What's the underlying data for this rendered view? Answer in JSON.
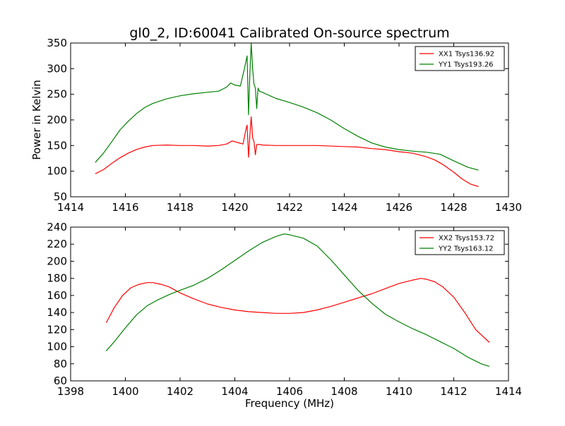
{
  "title": "gl0_2, ID:60041 Calibrated On-source spectrum",
  "colors": {
    "red": "#ff0000",
    "green": "#008000"
  },
  "chart_data": [
    {
      "type": "line",
      "ylabel": "Power in Kelvin",
      "xlabel": "",
      "xlim": [
        1414,
        1430
      ],
      "ylim": [
        50,
        350
      ],
      "xticks": [
        1414,
        1416,
        1418,
        1420,
        1422,
        1424,
        1426,
        1428,
        1430
      ],
      "yticks": [
        50,
        100,
        150,
        200,
        250,
        300,
        350
      ],
      "legend_position": "top-right",
      "series": [
        {
          "name": "XX1 Tsys136.92",
          "color": "#ff0000",
          "x": [
            1414.9,
            1415.2,
            1415.5,
            1415.8,
            1416.1,
            1416.4,
            1416.7,
            1417.0,
            1417.5,
            1418.0,
            1418.5,
            1419.0,
            1419.4,
            1419.7,
            1419.9,
            1420.1,
            1420.3,
            1420.4,
            1420.45,
            1420.5,
            1420.55,
            1420.6,
            1420.65,
            1420.7,
            1420.75,
            1420.8,
            1420.9,
            1421.0,
            1421.5,
            1422.0,
            1423.0,
            1424.0,
            1424.5,
            1425.0,
            1425.5,
            1426.0,
            1426.5,
            1427.0,
            1427.3,
            1427.6,
            1428.0,
            1428.3,
            1428.6,
            1428.9
          ],
          "y": [
            95,
            103,
            115,
            126,
            135,
            142,
            147,
            150,
            151,
            150,
            150,
            149,
            150,
            153,
            159,
            156,
            153,
            180,
            190,
            127,
            170,
            206,
            165,
            158,
            132,
            152,
            152,
            151,
            150,
            150,
            150,
            148,
            147,
            144,
            142,
            138,
            135,
            128,
            122,
            113,
            98,
            85,
            75,
            70
          ]
        },
        {
          "name": "YY1 Tsys193.26",
          "color": "#008000",
          "x": [
            1414.9,
            1415.2,
            1415.5,
            1415.8,
            1416.1,
            1416.4,
            1416.7,
            1417.0,
            1417.5,
            1418.0,
            1418.5,
            1419.0,
            1419.4,
            1419.7,
            1419.85,
            1420.0,
            1420.2,
            1420.35,
            1420.45,
            1420.5,
            1420.55,
            1420.6,
            1420.65,
            1420.7,
            1420.75,
            1420.8,
            1420.85,
            1420.9,
            1421.0,
            1421.5,
            1422.0,
            1422.5,
            1423.0,
            1423.5,
            1424.0,
            1424.5,
            1425.0,
            1425.5,
            1426.0,
            1426.5,
            1427.0,
            1427.5,
            1428.0,
            1428.5,
            1428.9
          ],
          "y": [
            117,
            135,
            157,
            180,
            197,
            212,
            224,
            232,
            241,
            247,
            251,
            254,
            256,
            264,
            272,
            268,
            266,
            300,
            325,
            210,
            290,
            350,
            300,
            270,
            262,
            222,
            262,
            256,
            254,
            242,
            234,
            225,
            214,
            200,
            183,
            168,
            155,
            147,
            142,
            139,
            137,
            133,
            120,
            108,
            102
          ]
        }
      ]
    },
    {
      "type": "line",
      "ylabel": "",
      "xlabel": "Frequency (MHz)",
      "xlim": [
        1398,
        1414
      ],
      "ylim": [
        60,
        240
      ],
      "xticks": [
        1398,
        1400,
        1402,
        1404,
        1406,
        1408,
        1410,
        1412,
        1414
      ],
      "yticks": [
        60,
        80,
        100,
        120,
        140,
        160,
        180,
        200,
        220,
        240
      ],
      "legend_position": "top-right",
      "series": [
        {
          "name": "XX2 Tsys153.72",
          "color": "#ff0000",
          "x": [
            1399.3,
            1399.6,
            1399.9,
            1400.2,
            1400.5,
            1400.8,
            1401.0,
            1401.3,
            1401.6,
            1402.0,
            1402.5,
            1403.0,
            1403.5,
            1404.0,
            1404.5,
            1405.0,
            1405.5,
            1406.0,
            1406.5,
            1407.0,
            1407.5,
            1408.0,
            1408.5,
            1409.0,
            1409.5,
            1410.0,
            1410.5,
            1410.8,
            1411.0,
            1411.3,
            1411.6,
            1412.0,
            1412.4,
            1412.8,
            1413.3
          ],
          "y": [
            128,
            146,
            160,
            169,
            173,
            175,
            175,
            173,
            170,
            163,
            156,
            150,
            146,
            143,
            141,
            140,
            139,
            139,
            140,
            143,
            147,
            152,
            157,
            162,
            168,
            174,
            178,
            180,
            179,
            176,
            170,
            158,
            140,
            120,
            105
          ]
        },
        {
          "name": "YY2 Tsys163.12",
          "color": "#008000",
          "x": [
            1399.3,
            1399.6,
            1400.0,
            1400.4,
            1400.8,
            1401.2,
            1401.6,
            1402.0,
            1402.5,
            1403.0,
            1403.5,
            1404.0,
            1404.5,
            1405.0,
            1405.5,
            1405.8,
            1406.0,
            1406.5,
            1407.0,
            1407.5,
            1408.0,
            1408.5,
            1409.0,
            1409.5,
            1410.0,
            1410.5,
            1411.0,
            1411.5,
            1412.0,
            1412.5,
            1413.0,
            1413.3
          ],
          "y": [
            95,
            106,
            122,
            137,
            148,
            155,
            161,
            166,
            172,
            180,
            190,
            201,
            212,
            222,
            229,
            232,
            231,
            227,
            218,
            202,
            184,
            166,
            151,
            138,
            129,
            121,
            114,
            106,
            98,
            88,
            80,
            77
          ]
        }
      ]
    }
  ]
}
